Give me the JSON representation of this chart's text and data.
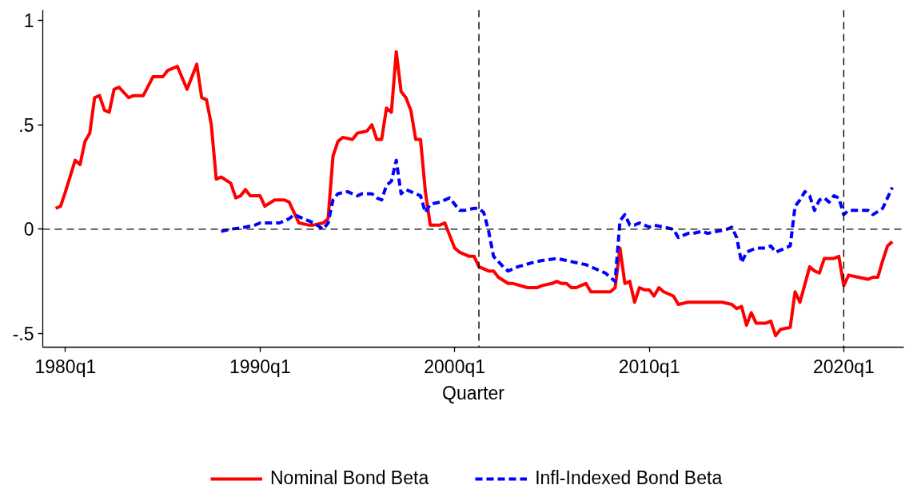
{
  "chart_data": {
    "type": "line",
    "xlabel": "Quarter",
    "xlim": [
      "1978-11",
      "2023-02"
    ],
    "ylim": [
      -0.565,
      1.05
    ],
    "xticks": [
      {
        "value": "1980-01",
        "label": "1980q1"
      },
      {
        "value": "1990-01",
        "label": "1990q1"
      },
      {
        "value": "2000-01",
        "label": "2000q1"
      },
      {
        "value": "2010-01",
        "label": "2010q1"
      },
      {
        "value": "2020-01",
        "label": "2020q1"
      }
    ],
    "yticks": [
      {
        "value": -0.5,
        "label": "-.5"
      },
      0,
      {
        "value": 0.5,
        "label": ".5"
      },
      1
    ],
    "legend": "bottom",
    "ref_lines": [
      {
        "axis": "y",
        "value": 0,
        "color": "#000000",
        "line_style": "dashed"
      },
      {
        "axis": "x",
        "value": "2001-04",
        "color": "#000000",
        "line_style": "dashed"
      },
      {
        "axis": "x",
        "value": "2020-01",
        "color": "#000000",
        "line_style": "dashed"
      }
    ],
    "series": [
      {
        "name": "Nominal Bond Beta",
        "color": "#ff0000",
        "line_style": "solid",
        "x": [
          "1979-07",
          "1979-10",
          "1980-01",
          "1980-07",
          "1980-10",
          "1981-01",
          "1981-04",
          "1981-07",
          "1981-10",
          "1982-01",
          "1982-04",
          "1982-07",
          "1982-10",
          "1983-04",
          "1983-07",
          "1984-01",
          "1984-07",
          "1985-01",
          "1985-04",
          "1985-10",
          "1986-04",
          "1986-10",
          "1987-01",
          "1987-04",
          "1987-07",
          "1987-10",
          "1988-01",
          "1988-07",
          "1988-10",
          "1989-01",
          "1989-04",
          "1989-07",
          "1990-01",
          "1990-04",
          "1990-10",
          "1991-04",
          "1991-07",
          "1991-10",
          "1992-01",
          "1992-07",
          "1992-10",
          "1993-04",
          "1993-07",
          "1993-10",
          "1994-01",
          "1994-04",
          "1994-10",
          "1995-01",
          "1995-07",
          "1995-10",
          "1996-01",
          "1996-04",
          "1996-07",
          "1996-10",
          "1997-01",
          "1997-04",
          "1997-07",
          "1997-10",
          "1998-01",
          "1998-04",
          "1998-07",
          "1998-10",
          "1999-04",
          "1999-07",
          "2000-01",
          "2000-04",
          "2000-10",
          "2001-01",
          "2001-04",
          "2001-10",
          "2002-01",
          "2002-04",
          "2002-10",
          "2003-01",
          "2003-10",
          "2004-04",
          "2004-07",
          "2005-01",
          "2005-04",
          "2005-07",
          "2005-10",
          "2006-01",
          "2006-04",
          "2006-07",
          "2006-10",
          "2007-01",
          "2007-10",
          "2008-01",
          "2008-04",
          "2008-07",
          "2008-10",
          "2009-01",
          "2009-04",
          "2009-07",
          "2009-10",
          "2010-01",
          "2010-04",
          "2010-07",
          "2010-10",
          "2011-04",
          "2011-07",
          "2012-01",
          "2012-07",
          "2013-01",
          "2013-10",
          "2014-04",
          "2014-07",
          "2014-10",
          "2015-01",
          "2015-04",
          "2015-07",
          "2016-01",
          "2016-04",
          "2016-07",
          "2016-10",
          "2017-04",
          "2017-07",
          "2017-10",
          "2018-04",
          "2018-07",
          "2018-10",
          "2019-01",
          "2019-07",
          "2019-10",
          "2020-01",
          "2020-04",
          "2020-10",
          "2021-04",
          "2021-07",
          "2021-10",
          "2022-01",
          "2022-04",
          "2022-07"
        ],
        "values": [
          0.1,
          0.11,
          0.18,
          0.33,
          0.31,
          0.42,
          0.46,
          0.63,
          0.64,
          0.57,
          0.56,
          0.67,
          0.68,
          0.63,
          0.64,
          0.64,
          0.73,
          0.73,
          0.76,
          0.78,
          0.67,
          0.79,
          0.63,
          0.62,
          0.5,
          0.24,
          0.25,
          0.22,
          0.15,
          0.16,
          0.19,
          0.16,
          0.16,
          0.11,
          0.14,
          0.14,
          0.13,
          0.08,
          0.03,
          0.02,
          0.02,
          0.03,
          0.05,
          0.35,
          0.42,
          0.44,
          0.43,
          0.46,
          0.47,
          0.5,
          0.43,
          0.43,
          0.58,
          0.56,
          0.85,
          0.66,
          0.63,
          0.57,
          0.43,
          0.43,
          0.18,
          0.02,
          0.02,
          0.03,
          -0.09,
          -0.11,
          -0.13,
          -0.13,
          -0.18,
          -0.2,
          -0.2,
          -0.23,
          -0.26,
          -0.26,
          -0.28,
          -0.28,
          -0.27,
          -0.26,
          -0.25,
          -0.26,
          -0.26,
          -0.28,
          -0.28,
          -0.27,
          -0.26,
          -0.3,
          -0.3,
          -0.3,
          -0.28,
          -0.09,
          -0.26,
          -0.25,
          -0.35,
          -0.28,
          -0.29,
          -0.29,
          -0.32,
          -0.28,
          -0.3,
          -0.32,
          -0.36,
          -0.35,
          -0.35,
          -0.35,
          -0.35,
          -0.36,
          -0.38,
          -0.37,
          -0.46,
          -0.4,
          -0.45,
          -0.45,
          -0.44,
          -0.51,
          -0.48,
          -0.47,
          -0.3,
          -0.35,
          -0.18,
          -0.2,
          -0.21,
          -0.14,
          -0.14,
          -0.13,
          -0.27,
          -0.22,
          -0.23,
          -0.24,
          -0.23,
          -0.23,
          -0.15,
          -0.08,
          -0.06
        ]
      },
      {
        "name": "Infl-Indexed Bond Beta",
        "color": "#0000ff",
        "line_style": "dashed",
        "x": [
          "1988-01",
          "1988-07",
          "1989-04",
          "1989-10",
          "1990-01",
          "1990-10",
          "1991-01",
          "1991-07",
          "1991-10",
          "1992-04",
          "1992-07",
          "1992-10",
          "1993-04",
          "1993-07",
          "1993-10",
          "1994-01",
          "1994-07",
          "1995-01",
          "1995-04",
          "1995-10",
          "1996-01",
          "1996-04",
          "1996-07",
          "1996-10",
          "1997-01",
          "1997-04",
          "1997-07",
          "1998-01",
          "1998-04",
          "1998-07",
          "1998-10",
          "1999-04",
          "1999-10",
          "2000-01",
          "2000-04",
          "2000-07",
          "2001-01",
          "2001-04",
          "2001-07",
          "2001-10",
          "2002-01",
          "2002-07",
          "2002-10",
          "2003-04",
          "2004-01",
          "2004-07",
          "2005-04",
          "2005-10",
          "2006-04",
          "2006-10",
          "2007-04",
          "2007-10",
          "2008-04",
          "2008-07",
          "2008-10",
          "2009-01",
          "2009-04",
          "2009-07",
          "2010-01",
          "2010-04",
          "2010-10",
          "2011-04",
          "2011-07",
          "2012-01",
          "2012-04",
          "2012-10",
          "2013-01",
          "2013-07",
          "2014-01",
          "2014-04",
          "2014-07",
          "2014-10",
          "2015-01",
          "2015-07",
          "2015-10",
          "2016-01",
          "2016-04",
          "2016-07",
          "2017-01",
          "2017-04",
          "2017-07",
          "2017-10",
          "2018-01",
          "2018-04",
          "2018-07",
          "2018-10",
          "2019-01",
          "2019-04",
          "2019-07",
          "2019-10",
          "2020-01",
          "2020-04",
          "2020-10",
          "2021-04",
          "2021-07",
          "2022-01",
          "2022-04",
          "2022-07"
        ],
        "values": [
          -0.01,
          0.0,
          0.01,
          0.02,
          0.03,
          0.03,
          0.03,
          0.05,
          0.07,
          0.05,
          0.04,
          0.03,
          0.0,
          0.03,
          0.14,
          0.17,
          0.18,
          0.16,
          0.17,
          0.17,
          0.15,
          0.14,
          0.21,
          0.23,
          0.33,
          0.17,
          0.19,
          0.17,
          0.16,
          0.08,
          0.12,
          0.13,
          0.15,
          0.12,
          0.09,
          0.09,
          0.1,
          0.1,
          0.08,
          -0.01,
          -0.13,
          -0.18,
          -0.2,
          -0.18,
          -0.16,
          -0.15,
          -0.14,
          -0.15,
          -0.16,
          -0.17,
          -0.19,
          -0.21,
          -0.25,
          0.04,
          0.07,
          0.02,
          0.02,
          0.03,
          0.01,
          0.02,
          0.01,
          0.0,
          -0.04,
          -0.02,
          -0.02,
          -0.01,
          -0.02,
          -0.01,
          0.0,
          0.01,
          -0.04,
          -0.16,
          -0.11,
          -0.09,
          -0.09,
          -0.09,
          -0.08,
          -0.11,
          -0.09,
          -0.08,
          0.11,
          0.14,
          0.18,
          0.16,
          0.09,
          0.14,
          0.15,
          0.13,
          0.16,
          0.15,
          0.07,
          0.09,
          0.09,
          0.09,
          0.07,
          0.1,
          0.15,
          0.2
        ]
      }
    ]
  }
}
